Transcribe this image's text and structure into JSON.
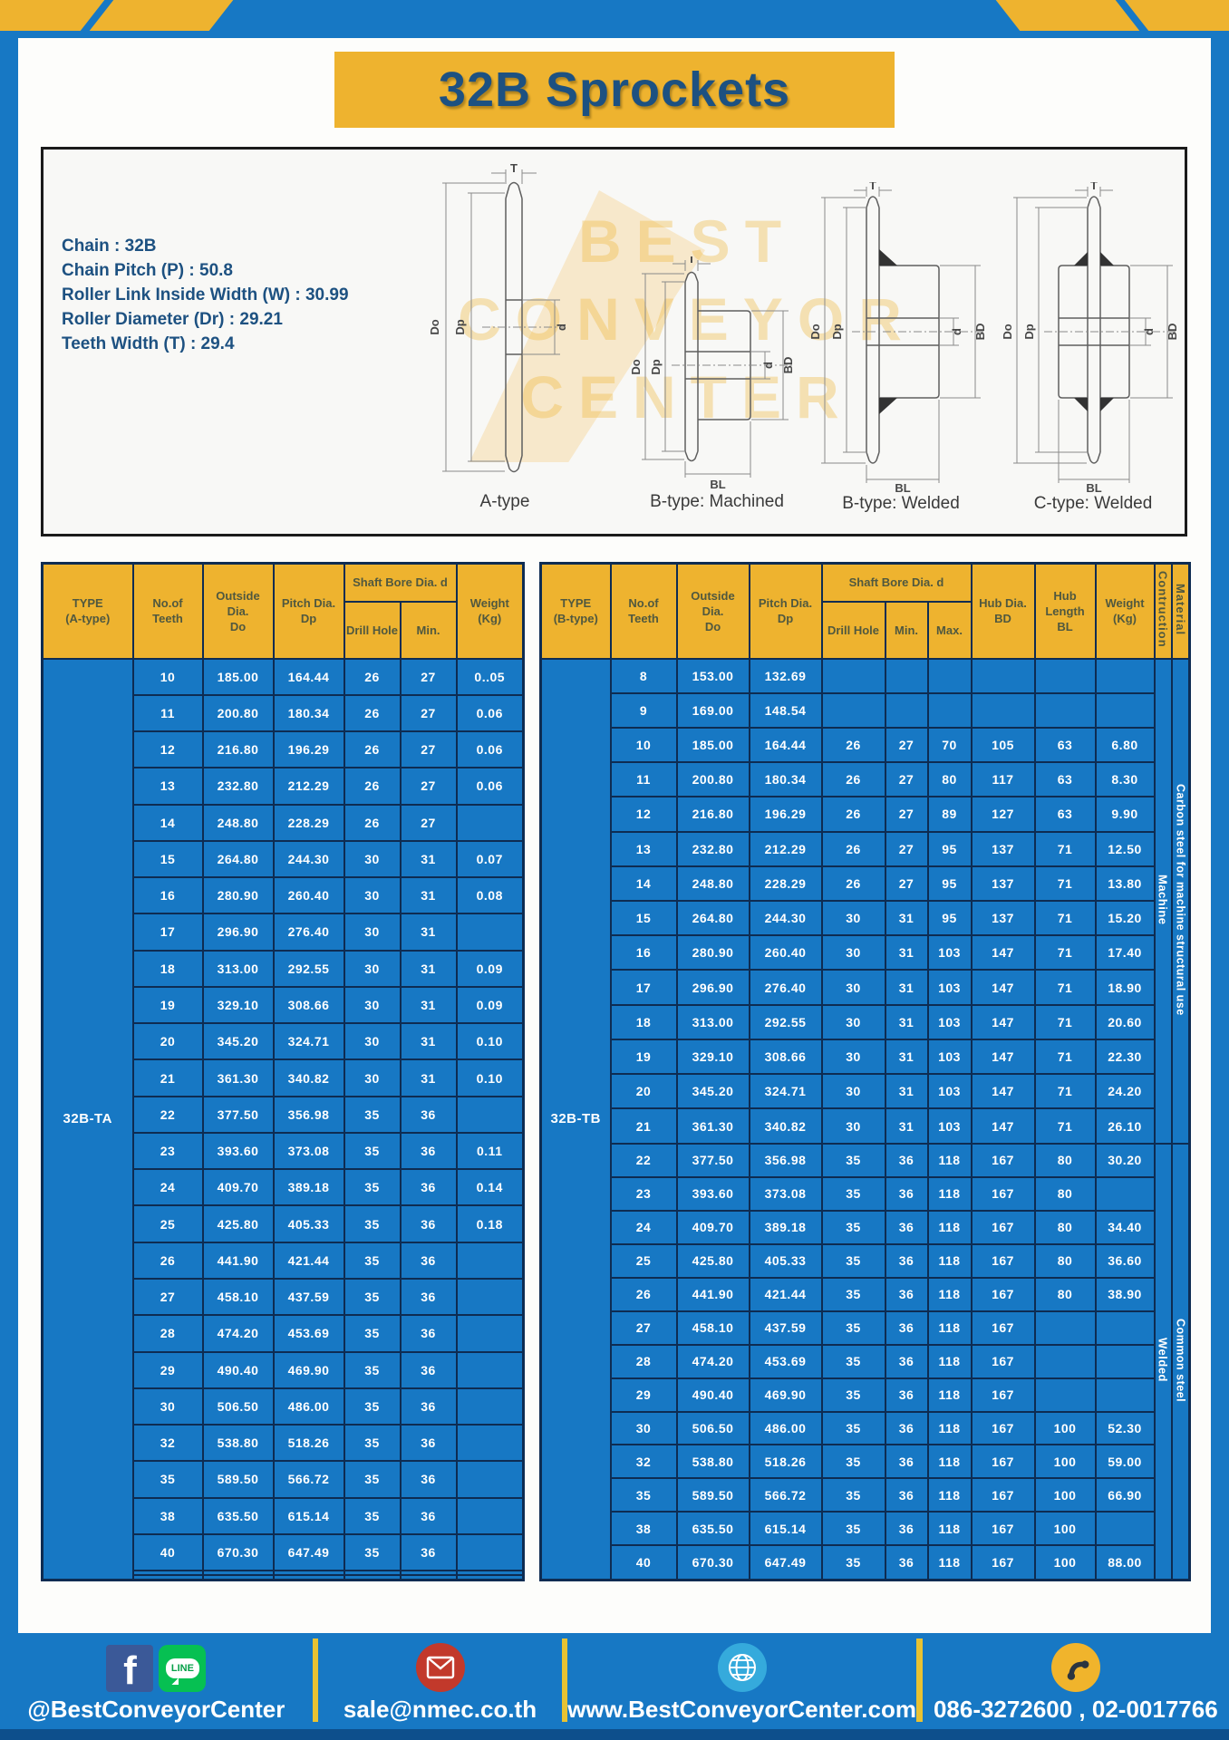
{
  "page": {
    "title": "32B Sprockets"
  },
  "colors": {
    "brand_blue": "#1778c4",
    "brand_yellow": "#eeb32f",
    "navy_text": "#1d5181",
    "table_border": "#0e2c52",
    "footer_dark": "#0d4f8c",
    "facebook_blue": "#3b5998",
    "line_green": "#06c052",
    "email_red": "#c2392b",
    "globe_blue": "#35aadc"
  },
  "specs": {
    "lines": [
      "Chain : 32B",
      "Chain Pitch (P) : 50.8",
      "Roller Link Inside Width (W) : 30.99",
      "Roller Diameter (Dr) : 29.21",
      "Teeth Width (T) : 29.4"
    ]
  },
  "diagram": {
    "captions": [
      "A-type",
      "B-type: Machined",
      "B-type: Welded",
      "C-type: Welded"
    ],
    "dim_labels": {
      "t": "T",
      "dout": "Do",
      "dp": "Dp",
      "d": "d",
      "bd": "BD",
      "bl": "BL"
    },
    "watermark": [
      "BEST",
      "CONVEYOR",
      "CENTER"
    ]
  },
  "table_a": {
    "type_label": "32B-TA",
    "headers": {
      "type": "TYPE\n(A-type)",
      "teeth": "No.of\nTeeth",
      "od": "Outside\nDia.\nDo",
      "pd": "Pitch Dia.\nDp",
      "shaft": "Shaft Bore Dia. d",
      "drill": "Drill Hole",
      "min": "Min.",
      "weight": "Weight\n(Kg)"
    },
    "rows": [
      [
        "10",
        "185.00",
        "164.44",
        "26",
        "27",
        "0..05"
      ],
      [
        "11",
        "200.80",
        "180.34",
        "26",
        "27",
        "0.06"
      ],
      [
        "12",
        "216.80",
        "196.29",
        "26",
        "27",
        "0.06"
      ],
      [
        "13",
        "232.80",
        "212.29",
        "26",
        "27",
        "0.06"
      ],
      [
        "14",
        "248.80",
        "228.29",
        "26",
        "27",
        ""
      ],
      [
        "15",
        "264.80",
        "244.30",
        "30",
        "31",
        "0.07"
      ],
      [
        "16",
        "280.90",
        "260.40",
        "30",
        "31",
        "0.08"
      ],
      [
        "17",
        "296.90",
        "276.40",
        "30",
        "31",
        ""
      ],
      [
        "18",
        "313.00",
        "292.55",
        "30",
        "31",
        "0.09"
      ],
      [
        "19",
        "329.10",
        "308.66",
        "30",
        "31",
        "0.09"
      ],
      [
        "20",
        "345.20",
        "324.71",
        "30",
        "31",
        "0.10"
      ],
      [
        "21",
        "361.30",
        "340.82",
        "30",
        "31",
        "0.10"
      ],
      [
        "22",
        "377.50",
        "356.98",
        "35",
        "36",
        ""
      ],
      [
        "23",
        "393.60",
        "373.08",
        "35",
        "36",
        "0.11"
      ],
      [
        "24",
        "409.70",
        "389.18",
        "35",
        "36",
        "0.14"
      ],
      [
        "25",
        "425.80",
        "405.33",
        "35",
        "36",
        "0.18"
      ],
      [
        "26",
        "441.90",
        "421.44",
        "35",
        "36",
        ""
      ],
      [
        "27",
        "458.10",
        "437.59",
        "35",
        "36",
        ""
      ],
      [
        "28",
        "474.20",
        "453.69",
        "35",
        "36",
        ""
      ],
      [
        "29",
        "490.40",
        "469.90",
        "35",
        "36",
        ""
      ],
      [
        "30",
        "506.50",
        "486.00",
        "35",
        "36",
        ""
      ],
      [
        "32",
        "538.80",
        "518.26",
        "35",
        "36",
        ""
      ],
      [
        "35",
        "589.50",
        "566.72",
        "35",
        "36",
        ""
      ],
      [
        "38",
        "635.50",
        "615.14",
        "35",
        "36",
        ""
      ],
      [
        "40",
        "670.30",
        "647.49",
        "35",
        "36",
        ""
      ],
      [
        "",
        "",
        "",
        "",
        "",
        ""
      ],
      [
        "",
        "",
        "",
        "",
        "",
        ""
      ]
    ]
  },
  "table_b": {
    "type_label": "32B-TB",
    "headers": {
      "type": "TYPE\n(B-type)",
      "teeth": "No.of\nTeeth",
      "od": "Outside\nDia.\nDo",
      "pd": "Pitch Dia.\nDp",
      "shaft": "Shaft Bore Dia. d",
      "drill": "Drill Hole",
      "min": "Min.",
      "max": "Max.",
      "hub_dia": "Hub Dia.\nBD",
      "hub_len": "Hub\nLength\nBL",
      "weight": "Weight\n(Kg)",
      "construction": "Contruction",
      "material": "Material"
    },
    "rows": [
      [
        "8",
        "153.00",
        "132.69",
        "",
        "",
        "",
        "",
        "",
        ""
      ],
      [
        "9",
        "169.00",
        "148.54",
        "",
        "",
        "",
        "",
        "",
        ""
      ],
      [
        "10",
        "185.00",
        "164.44",
        "26",
        "27",
        "70",
        "105",
        "63",
        "6.80"
      ],
      [
        "11",
        "200.80",
        "180.34",
        "26",
        "27",
        "80",
        "117",
        "63",
        "8.30"
      ],
      [
        "12",
        "216.80",
        "196.29",
        "26",
        "27",
        "89",
        "127",
        "63",
        "9.90"
      ],
      [
        "13",
        "232.80",
        "212.29",
        "26",
        "27",
        "95",
        "137",
        "71",
        "12.50"
      ],
      [
        "14",
        "248.80",
        "228.29",
        "26",
        "27",
        "95",
        "137",
        "71",
        "13.80"
      ],
      [
        "15",
        "264.80",
        "244.30",
        "30",
        "31",
        "95",
        "137",
        "71",
        "15.20"
      ],
      [
        "16",
        "280.90",
        "260.40",
        "30",
        "31",
        "103",
        "147",
        "71",
        "17.40"
      ],
      [
        "17",
        "296.90",
        "276.40",
        "30",
        "31",
        "103",
        "147",
        "71",
        "18.90"
      ],
      [
        "18",
        "313.00",
        "292.55",
        "30",
        "31",
        "103",
        "147",
        "71",
        "20.60"
      ],
      [
        "19",
        "329.10",
        "308.66",
        "30",
        "31",
        "103",
        "147",
        "71",
        "22.30"
      ],
      [
        "20",
        "345.20",
        "324.71",
        "30",
        "31",
        "103",
        "147",
        "71",
        "24.20"
      ],
      [
        "21",
        "361.30",
        "340.82",
        "30",
        "31",
        "103",
        "147",
        "71",
        "26.10"
      ],
      [
        "22",
        "377.50",
        "356.98",
        "35",
        "36",
        "118",
        "167",
        "80",
        "30.20"
      ],
      [
        "23",
        "393.60",
        "373.08",
        "35",
        "36",
        "118",
        "167",
        "80",
        ""
      ],
      [
        "24",
        "409.70",
        "389.18",
        "35",
        "36",
        "118",
        "167",
        "80",
        "34.40"
      ],
      [
        "25",
        "425.80",
        "405.33",
        "35",
        "36",
        "118",
        "167",
        "80",
        "36.60"
      ],
      [
        "26",
        "441.90",
        "421.44",
        "35",
        "36",
        "118",
        "167",
        "80",
        "38.90"
      ],
      [
        "27",
        "458.10",
        "437.59",
        "35",
        "36",
        "118",
        "167",
        "",
        ""
      ],
      [
        "28",
        "474.20",
        "453.69",
        "35",
        "36",
        "118",
        "167",
        "",
        ""
      ],
      [
        "29",
        "490.40",
        "469.90",
        "35",
        "36",
        "118",
        "167",
        "",
        ""
      ],
      [
        "30",
        "506.50",
        "486.00",
        "35",
        "36",
        "118",
        "167",
        "100",
        "52.30"
      ],
      [
        "32",
        "538.80",
        "518.26",
        "35",
        "36",
        "118",
        "167",
        "100",
        "59.00"
      ],
      [
        "35",
        "589.50",
        "566.72",
        "35",
        "36",
        "118",
        "167",
        "100",
        "66.90"
      ],
      [
        "38",
        "635.50",
        "615.14",
        "35",
        "36",
        "118",
        "167",
        "100",
        ""
      ],
      [
        "40",
        "670.30",
        "647.49",
        "35",
        "36",
        "118",
        "167",
        "100",
        "88.00"
      ]
    ],
    "groups": [
      {
        "construction": "Machine",
        "material": "Carbon steel for machine structural use",
        "rows": 14
      },
      {
        "construction": "Welded",
        "material": "Common steel",
        "rows": 13
      }
    ]
  },
  "footer": {
    "line_badge": "LINE",
    "sections": [
      {
        "label": "@BestConveyorCenter"
      },
      {
        "label": "sale@nmec.co.th"
      },
      {
        "label": "www.BestConveyorCenter.com"
      },
      {
        "label": "086-3272600 , 02-0017766"
      }
    ]
  }
}
